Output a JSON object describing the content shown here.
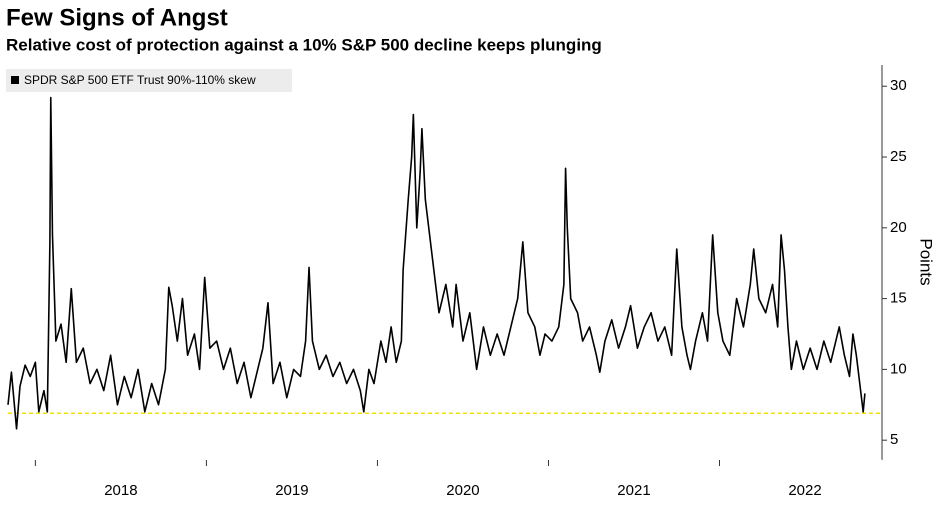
{
  "chart_data": {
    "type": "line",
    "title": "Few Signs of Angst",
    "subtitle": "Relative cost of protection against a 10% S&P 500 decline keeps plunging",
    "y_label": "Points",
    "x": [
      2017.84,
      2017.86,
      2017.89,
      2017.91,
      2017.94,
      2017.97,
      2018.0,
      2018.02,
      2018.05,
      2018.07,
      2018.085,
      2018.09,
      2018.1,
      2018.12,
      2018.15,
      2018.18,
      2018.21,
      2018.24,
      2018.28,
      2018.32,
      2018.36,
      2018.4,
      2018.44,
      2018.48,
      2018.52,
      2018.56,
      2018.6,
      2018.64,
      2018.68,
      2018.72,
      2018.76,
      2018.78,
      2018.8,
      2018.83,
      2018.86,
      2018.89,
      2018.93,
      2018.96,
      2018.99,
      2019.02,
      2019.06,
      2019.1,
      2019.14,
      2019.18,
      2019.22,
      2019.26,
      2019.3,
      2019.33,
      2019.36,
      2019.39,
      2019.43,
      2019.47,
      2019.51,
      2019.55,
      2019.58,
      2019.6,
      2019.62,
      2019.66,
      2019.7,
      2019.74,
      2019.78,
      2019.82,
      2019.86,
      2019.9,
      2019.92,
      2019.95,
      2019.98,
      2020.02,
      2020.05,
      2020.08,
      2020.11,
      2020.14,
      2020.15,
      2020.18,
      2020.2,
      2020.21,
      2020.23,
      2020.25,
      2020.26,
      2020.28,
      2020.3,
      2020.33,
      2020.36,
      2020.4,
      2020.44,
      2020.46,
      2020.5,
      2020.54,
      2020.58,
      2020.62,
      2020.66,
      2020.7,
      2020.74,
      2020.78,
      2020.82,
      2020.85,
      2020.88,
      2020.92,
      2020.95,
      2020.98,
      2021.02,
      2021.06,
      2021.09,
      2021.1,
      2021.11,
      2021.13,
      2021.17,
      2021.2,
      2021.24,
      2021.28,
      2021.3,
      2021.33,
      2021.37,
      2021.41,
      2021.45,
      2021.48,
      2021.52,
      2021.56,
      2021.6,
      2021.64,
      2021.68,
      2021.72,
      2021.75,
      2021.78,
      2021.81,
      2021.83,
      2021.86,
      2021.9,
      2021.93,
      2021.96,
      2021.99,
      2022.02,
      2022.06,
      2022.1,
      2022.14,
      2022.18,
      2022.2,
      2022.23,
      2022.27,
      2022.31,
      2022.34,
      2022.36,
      2022.38,
      2022.4,
      2022.42,
      2022.45,
      2022.49,
      2022.53,
      2022.57,
      2022.61,
      2022.65,
      2022.7,
      2022.73,
      2022.76,
      2022.78,
      2022.8,
      2022.82,
      2022.84,
      2022.85
    ],
    "series": [
      {
        "name": "SPDR S&P 500 ETF Trust 90%-110% skew",
        "color": "#000000",
        "values": [
          7.5,
          9.8,
          5.8,
          8.8,
          10.3,
          9.5,
          10.5,
          7.0,
          8.5,
          7.0,
          19.0,
          29.2,
          19.5,
          12.0,
          13.2,
          10.5,
          15.7,
          10.5,
          11.5,
          9.0,
          10.0,
          8.5,
          11.0,
          7.5,
          9.5,
          8.0,
          10.0,
          7.0,
          9.0,
          7.5,
          10.0,
          15.8,
          14.5,
          12.0,
          15.0,
          11.0,
          12.5,
          10.0,
          16.5,
          11.5,
          12.0,
          10.0,
          11.5,
          9.0,
          10.5,
          8.0,
          10.0,
          11.5,
          14.7,
          9.0,
          10.5,
          8.0,
          10.0,
          9.5,
          12.0,
          17.2,
          12.0,
          10.0,
          11.0,
          9.5,
          10.5,
          9.0,
          10.0,
          8.5,
          7.0,
          10.0,
          9.0,
          12.0,
          10.5,
          13.0,
          10.5,
          12.0,
          17.0,
          22.0,
          25.0,
          28.0,
          20.0,
          24.0,
          27.0,
          22.0,
          20.0,
          17.0,
          14.0,
          16.0,
          13.0,
          16.0,
          12.0,
          14.0,
          10.0,
          13.0,
          11.0,
          12.5,
          11.0,
          13.0,
          15.0,
          19.0,
          14.0,
          13.0,
          11.0,
          12.5,
          12.0,
          13.0,
          16.0,
          24.2,
          20.0,
          15.0,
          14.0,
          12.0,
          13.0,
          11.0,
          9.8,
          12.0,
          13.5,
          11.5,
          13.0,
          14.5,
          11.5,
          13.0,
          14.0,
          12.0,
          13.0,
          11.0,
          18.5,
          13.0,
          11.0,
          10.0,
          12.0,
          14.0,
          12.0,
          19.5,
          14.0,
          12.0,
          11.0,
          15.0,
          13.0,
          16.0,
          18.5,
          15.0,
          14.0,
          16.0,
          13.0,
          19.5,
          17.0,
          13.0,
          10.0,
          12.0,
          10.0,
          11.5,
          10.0,
          12.0,
          10.5,
          13.0,
          11.0,
          9.5,
          12.5,
          11.0,
          9.0,
          7.0,
          8.3
        ]
      }
    ],
    "threshold": 6.9,
    "threshold_color": "#f5e000",
    "xlim": [
      2017.84,
      2022.95
    ],
    "xticks": [
      2018,
      2019,
      2020,
      2021,
      2022
    ],
    "ylim": [
      3.6,
      31.5
    ],
    "yticks": [
      5,
      10,
      15,
      20,
      25,
      30
    ],
    "grid": false
  }
}
